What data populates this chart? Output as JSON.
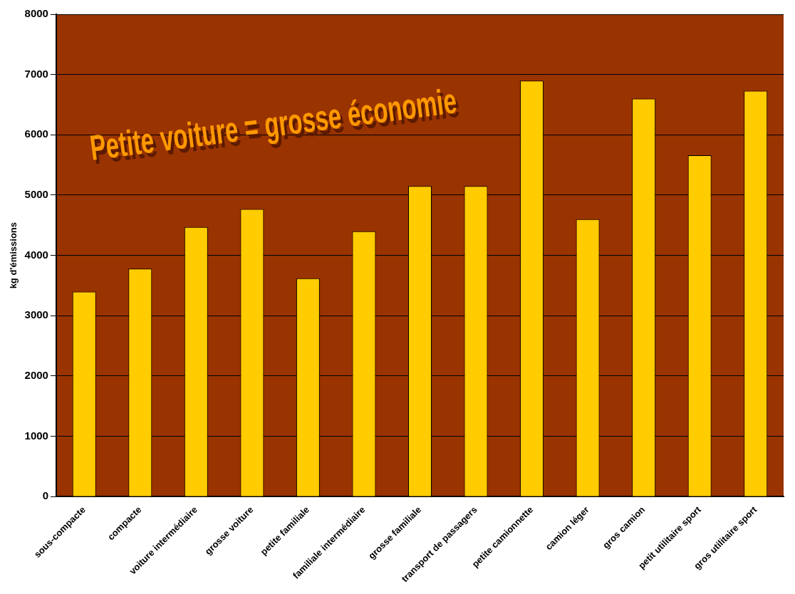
{
  "chart_data": {
    "type": "bar",
    "title": "Petite voiture = grosse économie",
    "ylabel": "kg d'émissions",
    "categories": [
      "sous-compacte",
      "compacte",
      "voiture intermédiaire",
      "grosse voiture",
      "petite familiale",
      "familiale intermédiaire",
      "grosse familiale",
      "transport de passagers",
      "petite camionnette",
      "camion léger",
      "gros camion",
      "petit utilitaire sport",
      "gros utilitaire sport"
    ],
    "values": [
      3400,
      3780,
      4470,
      4770,
      3620,
      4400,
      5150,
      5150,
      6900,
      4600,
      6600,
      5660,
      6730
    ],
    "color": "#ffcc00",
    "ylim": [
      0,
      8000
    ],
    "yticks": [
      0,
      1000,
      2000,
      3000,
      4000,
      5000,
      6000,
      7000,
      8000
    ],
    "grid": "y",
    "legend": false
  }
}
